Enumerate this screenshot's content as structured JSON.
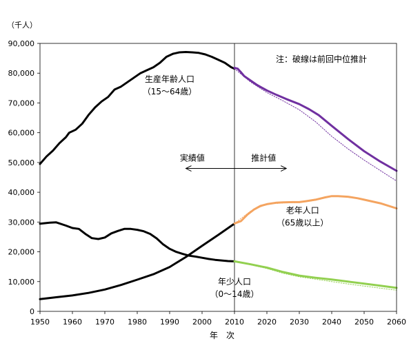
{
  "chart_data": {
    "type": "line",
    "unit_label": "（千人）",
    "xlabel": "年　次",
    "xlim": [
      1950,
      2060
    ],
    "ylim": [
      0,
      90000
    ],
    "x_ticks": [
      "1950",
      "1960",
      "1970",
      "1980",
      "1990",
      "2000",
      "2010",
      "2020",
      "2030",
      "2040",
      "2050",
      "2060"
    ],
    "y_ticks": [
      "0",
      "10,000",
      "20,000",
      "30,000",
      "40,000",
      "50,000",
      "60,000",
      "70,000",
      "80,000",
      "90,000"
    ],
    "note": "注：破線は前回中位推計",
    "divider_year": 2010,
    "arrow_actual_label": "実績値",
    "arrow_projected_label": "推計値",
    "arrow_span": [
      1995,
      2026
    ],
    "series": [
      {
        "name": "生産年齢人口",
        "sublabel": "（15～64歳）",
        "color": "#000000",
        "phase": "actual",
        "x": [
          1950,
          1952,
          1954,
          1956,
          1958,
          1959,
          1961,
          1963,
          1965,
          1967,
          1969,
          1971,
          1973,
          1975,
          1977,
          1979,
          1981,
          1983,
          1985,
          1987,
          1989,
          1991,
          1993,
          1995,
          1997,
          1999,
          2001,
          2003,
          2005,
          2007,
          2009,
          2010
        ],
        "y": [
          49500,
          52000,
          54000,
          56500,
          58500,
          60000,
          61000,
          63000,
          66000,
          68500,
          70500,
          72000,
          74500,
          75500,
          77000,
          78500,
          80000,
          81000,
          82000,
          83500,
          85500,
          86500,
          87000,
          87100,
          87000,
          86800,
          86300,
          85500,
          84500,
          83500,
          82000,
          81500
        ]
      },
      {
        "name": "生産年齢人口推計",
        "color": "#7030A0",
        "phase": "projected",
        "x": [
          2010,
          2011,
          2012,
          2013,
          2015,
          2017,
          2020,
          2023,
          2026,
          2030,
          2033,
          2036,
          2040,
          2045,
          2050,
          2055,
          2060
        ],
        "y": [
          81800,
          81500,
          80300,
          79000,
          77500,
          76000,
          74200,
          72700,
          71300,
          69600,
          67900,
          65900,
          62300,
          57900,
          53800,
          50300,
          47200
        ]
      },
      {
        "name": "生産年齢人口前回推計",
        "color": "#7030A0",
        "phase": "previous",
        "x": [
          2010,
          2015,
          2020,
          2025,
          2030,
          2035,
          2040,
          2045,
          2050,
          2055,
          2060
        ],
        "y": [
          81500,
          77000,
          73500,
          70700,
          67700,
          63700,
          58800,
          54600,
          50800,
          47300,
          43800
        ]
      },
      {
        "name": "老年人口",
        "color": "#000000",
        "phase": "actual",
        "x": [
          1950,
          1955,
          1960,
          1965,
          1970,
          1975,
          1980,
          1985,
          1990,
          1995,
          2000,
          2005,
          2010
        ],
        "y": [
          4100,
          4750,
          5350,
          6200,
          7330,
          8860,
          10650,
          12470,
          14900,
          18260,
          22000,
          25670,
          29480
        ]
      },
      {
        "name": "老年人口推計",
        "sublabel": "（65歳以上）",
        "color": "#F4A460",
        "phase": "projected",
        "x": [
          2010,
          2012,
          2014,
          2016,
          2018,
          2020,
          2023,
          2025,
          2028,
          2030,
          2032,
          2035,
          2038,
          2040,
          2042,
          2045,
          2048,
          2050,
          2055,
          2060
        ],
        "y": [
          29500,
          30300,
          32500,
          34200,
          35400,
          36000,
          36500,
          36600,
          36700,
          36700,
          37000,
          37500,
          38300,
          38700,
          38700,
          38500,
          38000,
          37500,
          36300,
          34600
        ]
      },
      {
        "name": "老年人口前回推計",
        "color": "#F4A460",
        "phase": "previous",
        "x": [
          2010,
          2015,
          2020,
          2025,
          2030,
          2035,
          2040,
          2045,
          2050,
          2055,
          2060
        ],
        "y": [
          29500,
          33700,
          36000,
          36400,
          36500,
          37300,
          38600,
          38400,
          37600,
          36300,
          34600
        ]
      },
      {
        "name": "年少人口",
        "color": "#000000",
        "phase": "actual",
        "x": [
          1950,
          1953,
          1955,
          1958,
          1960,
          1962,
          1964,
          1966,
          1968,
          1970,
          1972,
          1974,
          1976,
          1978,
          1980,
          1982,
          1984,
          1986,
          1988,
          1990,
          1992,
          1994,
          1996,
          1998,
          2000,
          2002,
          2004,
          2006,
          2008,
          2010
        ],
        "y": [
          29430,
          29800,
          29900,
          28800,
          28000,
          27700,
          26000,
          24600,
          24300,
          24800,
          26200,
          27000,
          27700,
          27700,
          27400,
          26900,
          26000,
          24500,
          22500,
          21000,
          20000,
          19300,
          18700,
          18400,
          18000,
          17600,
          17300,
          17100,
          16900,
          16800
        ]
      },
      {
        "name": "年少人口推計",
        "sublabel": "（0～14歳）",
        "color": "#92D050",
        "phase": "projected",
        "x": [
          2010,
          2015,
          2020,
          2025,
          2030,
          2035,
          2040,
          2045,
          2050,
          2055,
          2060
        ],
        "y": [
          16800,
          15800,
          14700,
          13200,
          12000,
          11300,
          10700,
          10000,
          9300,
          8600,
          7900
        ]
      },
      {
        "name": "年少人口前回推計",
        "color": "#92D050",
        "phase": "previous",
        "x": [
          2010,
          2015,
          2020,
          2025,
          2030,
          2035,
          2040,
          2045,
          2050,
          2055,
          2060
        ],
        "y": [
          16800,
          15600,
          14400,
          12800,
          11600,
          10800,
          10000,
          9200,
          8500,
          7800,
          7100
        ]
      }
    ],
    "labels": [
      {
        "series": "生産年齢人口",
        "text": "生産年齢人口",
        "sub": "（15～64歳）",
        "anchor": [
          1990,
          77000
        ]
      },
      {
        "series": "老年人口推計",
        "text": "老年人口",
        "sub": "（65歳以上）",
        "anchor": [
          2031,
          33000
        ]
      },
      {
        "series": "年少人口推計",
        "text": "年少人口",
        "sub": "（0～14歳）",
        "anchor": [
          2010,
          9000
        ]
      }
    ]
  }
}
